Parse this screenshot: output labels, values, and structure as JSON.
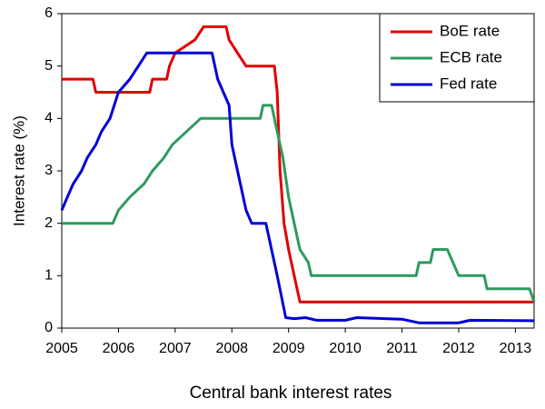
{
  "chart_data": {
    "type": "line",
    "xlabel": "Central bank interest rates",
    "ylabel": "Interest rate (%)",
    "xlim": [
      2005,
      2013.33
    ],
    "xticks": [
      2005,
      2006,
      2007,
      2008,
      2009,
      2010,
      2011,
      2012,
      2013
    ],
    "ylim": [
      0,
      6
    ],
    "yticks": [
      0,
      1,
      2,
      3,
      4,
      5,
      6
    ],
    "grid": false,
    "legend": "top-right",
    "series": [
      {
        "name": "BoE rate",
        "color": "#e00000",
        "x": [
          2005.0,
          2005.55,
          2005.6,
          2006.55,
          2006.6,
          2006.85,
          2006.9,
          2007.0,
          2007.35,
          2007.5,
          2007.9,
          2007.95,
          2008.1,
          2008.25,
          2008.75,
          2008.8,
          2008.85,
          2008.92,
          2009.0,
          2009.1,
          2009.2,
          2013.33
        ],
        "values": [
          4.75,
          4.75,
          4.5,
          4.5,
          4.75,
          4.75,
          5.0,
          5.25,
          5.5,
          5.75,
          5.75,
          5.5,
          5.25,
          5.0,
          5.0,
          4.5,
          3.0,
          2.0,
          1.5,
          1.0,
          0.5,
          0.5
        ]
      },
      {
        "name": "ECB rate",
        "color": "#2e9a5e",
        "x": [
          2005.0,
          2005.9,
          2006.0,
          2006.2,
          2006.45,
          2006.6,
          2006.8,
          2006.95,
          2007.2,
          2007.45,
          2008.5,
          2008.55,
          2008.7,
          2008.8,
          2008.9,
          2009.0,
          2009.1,
          2009.2,
          2009.35,
          2009.4,
          2011.25,
          2011.3,
          2011.5,
          2011.55,
          2011.8,
          2011.9,
          2012.0,
          2012.45,
          2012.5,
          2013.25,
          2013.33
        ],
        "values": [
          2.0,
          2.0,
          2.25,
          2.5,
          2.75,
          3.0,
          3.25,
          3.5,
          3.75,
          4.0,
          4.0,
          4.25,
          4.25,
          3.75,
          3.25,
          2.5,
          2.0,
          1.5,
          1.25,
          1.0,
          1.0,
          1.25,
          1.25,
          1.5,
          1.5,
          1.25,
          1.0,
          1.0,
          0.75,
          0.75,
          0.5
        ]
      },
      {
        "name": "Fed rate",
        "color": "#0000d8",
        "x": [
          2005.0,
          2005.1,
          2005.2,
          2005.35,
          2005.45,
          2005.6,
          2005.7,
          2005.85,
          2006.0,
          2006.2,
          2006.35,
          2006.5,
          2007.65,
          2007.75,
          2007.85,
          2007.95,
          2008.0,
          2008.1,
          2008.25,
          2008.35,
          2008.6,
          2008.8,
          2008.95,
          2009.1,
          2009.3,
          2009.5,
          2010.0,
          2010.2,
          2011.0,
          2011.3,
          2012.0,
          2012.2,
          2013.33
        ],
        "values": [
          2.25,
          2.5,
          2.75,
          3.0,
          3.25,
          3.5,
          3.75,
          4.0,
          4.5,
          4.75,
          5.0,
          5.25,
          5.25,
          4.75,
          4.5,
          4.25,
          3.5,
          3.0,
          2.25,
          2.0,
          2.0,
          1.0,
          0.2,
          0.18,
          0.2,
          0.15,
          0.15,
          0.2,
          0.17,
          0.1,
          0.1,
          0.15,
          0.14
        ]
      }
    ]
  }
}
